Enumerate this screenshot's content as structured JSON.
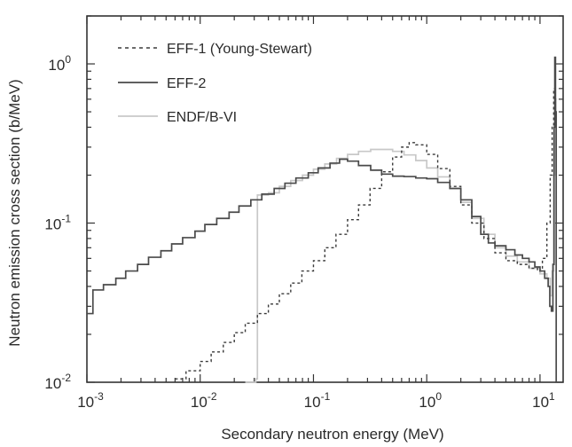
{
  "chart_data": {
    "type": "line",
    "title": "",
    "xlabel": "Secondary neutron energy (MeV)",
    "ylabel": "Neutron emission cross section (b/MeV)",
    "xscale": "log",
    "yscale": "log",
    "xlim": [
      0.001,
      16
    ],
    "ylim": [
      0.01,
      2
    ],
    "xticks": [
      {
        "base": "10",
        "exp": "-3"
      },
      {
        "base": "10",
        "exp": "-2"
      },
      {
        "base": "10",
        "exp": "-1"
      },
      {
        "base": "10",
        "exp": "0"
      },
      {
        "base": "10",
        "exp": "1"
      }
    ],
    "yticks": [
      {
        "base": "10",
        "exp": "-2"
      },
      {
        "base": "10",
        "exp": "-1"
      },
      {
        "base": "10",
        "exp": "0"
      }
    ],
    "grid": false,
    "legend_position": "top-left",
    "series": [
      {
        "name": "EFF-1 (Young-Stewart)",
        "style": "dashed",
        "color": "#3a3a3a",
        "points": [
          [
            0.006,
            0.0105
          ],
          [
            0.0075,
            0.0118
          ],
          [
            0.01,
            0.0135
          ],
          [
            0.0125,
            0.0155
          ],
          [
            0.016,
            0.0178
          ],
          [
            0.02,
            0.0205
          ],
          [
            0.025,
            0.0235
          ],
          [
            0.032,
            0.027
          ],
          [
            0.04,
            0.031
          ],
          [
            0.05,
            0.036
          ],
          [
            0.063,
            0.042
          ],
          [
            0.079,
            0.05
          ],
          [
            0.1,
            0.058
          ],
          [
            0.126,
            0.07
          ],
          [
            0.158,
            0.085
          ],
          [
            0.2,
            0.105
          ],
          [
            0.25,
            0.13
          ],
          [
            0.316,
            0.165
          ],
          [
            0.4,
            0.21
          ],
          [
            0.5,
            0.26
          ],
          [
            0.6,
            0.3
          ],
          [
            0.7,
            0.32
          ],
          [
            0.8,
            0.31
          ],
          [
            1.0,
            0.27
          ],
          [
            1.25,
            0.22
          ],
          [
            1.6,
            0.17
          ],
          [
            2.0,
            0.13
          ],
          [
            2.5,
            0.1
          ],
          [
            3.2,
            0.08
          ],
          [
            4.0,
            0.065
          ],
          [
            5.0,
            0.058
          ],
          [
            6.3,
            0.055
          ],
          [
            8.0,
            0.052
          ],
          [
            9.5,
            0.05
          ],
          [
            10.5,
            0.06
          ],
          [
            11.5,
            0.1
          ],
          [
            12.3,
            0.2
          ],
          [
            12.8,
            0.4
          ],
          [
            13.2,
            0.7
          ],
          [
            13.6,
            0.4
          ]
        ]
      },
      {
        "name": "EFF-2",
        "style": "solid",
        "color": "#4a4a4a",
        "points": [
          [
            0.001,
            0.027
          ],
          [
            0.00113,
            0.038
          ],
          [
            0.0014,
            0.041
          ],
          [
            0.0018,
            0.045
          ],
          [
            0.0022,
            0.05
          ],
          [
            0.0028,
            0.055
          ],
          [
            0.0035,
            0.061
          ],
          [
            0.0045,
            0.067
          ],
          [
            0.0056,
            0.074
          ],
          [
            0.007,
            0.081
          ],
          [
            0.009,
            0.089
          ],
          [
            0.011,
            0.098
          ],
          [
            0.014,
            0.107
          ],
          [
            0.018,
            0.117
          ],
          [
            0.022,
            0.128
          ],
          [
            0.028,
            0.14
          ],
          [
            0.035,
            0.152
          ],
          [
            0.045,
            0.165
          ],
          [
            0.056,
            0.178
          ],
          [
            0.07,
            0.192
          ],
          [
            0.09,
            0.207
          ],
          [
            0.11,
            0.222
          ],
          [
            0.14,
            0.238
          ],
          [
            0.17,
            0.252
          ],
          [
            0.2,
            0.245
          ],
          [
            0.25,
            0.23
          ],
          [
            0.32,
            0.215
          ],
          [
            0.4,
            0.203
          ],
          [
            0.5,
            0.197
          ],
          [
            0.63,
            0.196
          ],
          [
            0.8,
            0.192
          ],
          [
            1.0,
            0.19
          ],
          [
            1.25,
            0.18
          ],
          [
            1.6,
            0.165
          ],
          [
            2.0,
            0.14
          ],
          [
            2.5,
            0.11
          ],
          [
            3.0,
            0.085
          ],
          [
            3.5,
            0.075
          ],
          [
            4.0,
            0.072
          ],
          [
            5.0,
            0.068
          ],
          [
            6.0,
            0.063
          ],
          [
            7.0,
            0.06
          ],
          [
            8.0,
            0.057
          ],
          [
            9.0,
            0.053
          ],
          [
            10.0,
            0.05
          ],
          [
            11.0,
            0.045
          ],
          [
            11.8,
            0.04
          ],
          [
            12.2,
            0.03
          ],
          [
            12.6,
            0.028
          ],
          [
            13.0,
            0.055
          ],
          [
            13.3,
            0.4
          ],
          [
            13.5,
            1.1
          ],
          [
            13.7,
            0.5
          ],
          [
            13.9,
            0.01
          ]
        ]
      },
      {
        "name": "ENDF/B-VI",
        "style": "solid",
        "color": "#c8c8c8",
        "points": [
          [
            0.025,
            0.01
          ],
          [
            0.031,
            0.0105
          ],
          [
            0.032,
            0.15
          ],
          [
            0.04,
            0.155
          ],
          [
            0.05,
            0.17
          ],
          [
            0.063,
            0.185
          ],
          [
            0.08,
            0.2
          ],
          [
            0.1,
            0.218
          ],
          [
            0.126,
            0.235
          ],
          [
            0.16,
            0.255
          ],
          [
            0.2,
            0.27
          ],
          [
            0.25,
            0.282
          ],
          [
            0.32,
            0.29
          ],
          [
            0.4,
            0.29
          ],
          [
            0.5,
            0.282
          ],
          [
            0.63,
            0.268
          ],
          [
            0.8,
            0.247
          ],
          [
            1.0,
            0.222
          ],
          [
            1.25,
            0.195
          ],
          [
            1.6,
            0.165
          ],
          [
            2.0,
            0.135
          ],
          [
            2.5,
            0.107
          ],
          [
            3.2,
            0.085
          ],
          [
            4.0,
            0.07
          ],
          [
            5.0,
            0.062
          ],
          [
            6.3,
            0.057
          ],
          [
            8.0,
            0.052
          ],
          [
            10.0,
            0.048
          ],
          [
            11.5,
            0.045
          ],
          [
            12.3,
            0.035
          ],
          [
            12.8,
            0.05
          ],
          [
            13.2,
            0.2
          ],
          [
            13.5,
            0.6
          ],
          [
            13.8,
            0.3
          ]
        ]
      }
    ]
  }
}
